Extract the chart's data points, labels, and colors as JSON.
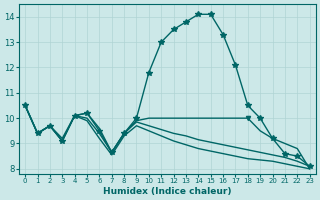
{
  "xlabel": "Humidex (Indice chaleur)",
  "bg_color": "#cce8e8",
  "grid_color": "#b0d4d4",
  "line_color": "#006666",
  "xlim": [
    -0.5,
    23.5
  ],
  "ylim": [
    7.8,
    14.5
  ],
  "yticks": [
    8,
    9,
    10,
    11,
    12,
    13,
    14
  ],
  "xticks": [
    0,
    1,
    2,
    3,
    4,
    5,
    6,
    7,
    8,
    9,
    10,
    11,
    12,
    13,
    14,
    15,
    16,
    17,
    18,
    19,
    20,
    21,
    22,
    23
  ],
  "lines": [
    {
      "x": [
        0,
        1,
        2,
        3,
        4,
        5,
        6,
        7,
        8,
        9,
        10,
        11,
        12,
        13,
        14,
        15,
        16,
        17,
        18,
        19,
        20,
        21,
        22,
        23
      ],
      "y": [
        10.5,
        9.4,
        9.7,
        9.1,
        10.1,
        10.2,
        9.5,
        8.65,
        9.4,
        10.0,
        11.8,
        13.0,
        13.5,
        13.8,
        14.1,
        14.1,
        13.3,
        12.1,
        10.5,
        10.0,
        9.2,
        8.6,
        8.5,
        8.1
      ],
      "marker": "*",
      "markersize": 4,
      "linewidth": 1.0
    },
    {
      "x": [
        0,
        1,
        2,
        3,
        4,
        5,
        6,
        7,
        8,
        9,
        10,
        11,
        12,
        13,
        14,
        15,
        16,
        17,
        18,
        19,
        20,
        21,
        22,
        23
      ],
      "y": [
        10.5,
        9.4,
        9.7,
        9.2,
        10.1,
        10.2,
        9.6,
        8.65,
        9.4,
        9.9,
        10.0,
        10.0,
        10.0,
        10.0,
        10.0,
        10.0,
        10.0,
        10.0,
        10.0,
        9.5,
        9.2,
        9.0,
        8.8,
        8.0
      ],
      "marker": "v",
      "markersize": 3,
      "linewidth": 1.0,
      "markerat": [
        18
      ]
    },
    {
      "x": [
        0,
        1,
        2,
        3,
        4,
        5,
        6,
        7,
        8,
        9,
        10,
        11,
        12,
        13,
        14,
        15,
        16,
        17,
        18,
        19,
        20,
        21,
        22,
        23
      ],
      "y": [
        10.5,
        9.4,
        9.7,
        9.1,
        10.1,
        10.0,
        9.4,
        8.65,
        9.4,
        9.85,
        9.7,
        9.55,
        9.4,
        9.3,
        9.15,
        9.05,
        8.95,
        8.85,
        8.75,
        8.65,
        8.55,
        8.45,
        8.3,
        8.1
      ],
      "marker": null,
      "markersize": 0,
      "linewidth": 1.0
    },
    {
      "x": [
        0,
        1,
        2,
        3,
        4,
        5,
        6,
        7,
        8,
        9,
        10,
        11,
        12,
        13,
        14,
        15,
        16,
        17,
        18,
        19,
        20,
        21,
        22,
        23
      ],
      "y": [
        10.5,
        9.4,
        9.7,
        9.1,
        10.1,
        9.9,
        9.2,
        8.55,
        9.3,
        9.7,
        9.5,
        9.3,
        9.1,
        8.95,
        8.8,
        8.7,
        8.6,
        8.5,
        8.4,
        8.35,
        8.3,
        8.2,
        8.1,
        8.0
      ],
      "marker": null,
      "markersize": 0,
      "linewidth": 1.0
    }
  ]
}
